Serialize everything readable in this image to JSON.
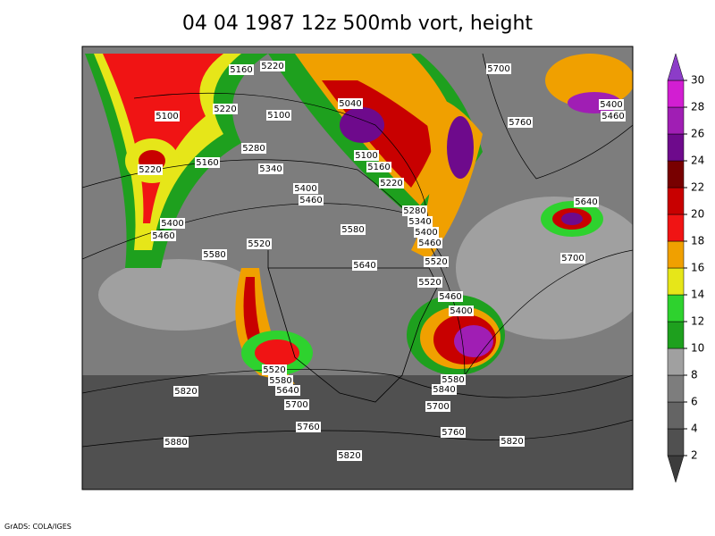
{
  "title": "04 04 1987 12z 500mb vort, height",
  "credit": "GrADS: COLA/IGES",
  "contour_labels": [
    5160,
    5220,
    5100,
    5220,
    5100,
    5040,
    5700,
    5400,
    5460,
    5760,
    5220,
    5160,
    5280,
    5340,
    5100,
    5160,
    5220,
    5400,
    5460,
    5280,
    5340,
    5400,
    5460,
    5400,
    5460,
    5520,
    5580,
    5640,
    5580,
    5640,
    5520,
    5700,
    5520,
    5460,
    5400,
    5520,
    5580,
    5640,
    5580,
    5840,
    5820,
    5700,
    5700,
    5760,
    5760,
    5820,
    5880,
    5820
  ],
  "colorbar": {
    "ticks": [
      2,
      4,
      6,
      8,
      10,
      12,
      14,
      16,
      18,
      20,
      22,
      24,
      26,
      28,
      30
    ],
    "colors": [
      "#3c3c3c",
      "#505050",
      "#646464",
      "#7d7d7d",
      "#a0a0a0",
      "#1ea01e",
      "#2ed22e",
      "#e6e619",
      "#f0a000",
      "#f01414",
      "#c80000",
      "#780000",
      "#6e0a8c",
      "#a01eb4",
      "#d21ed2",
      "#8c3cc8"
    ]
  }
}
